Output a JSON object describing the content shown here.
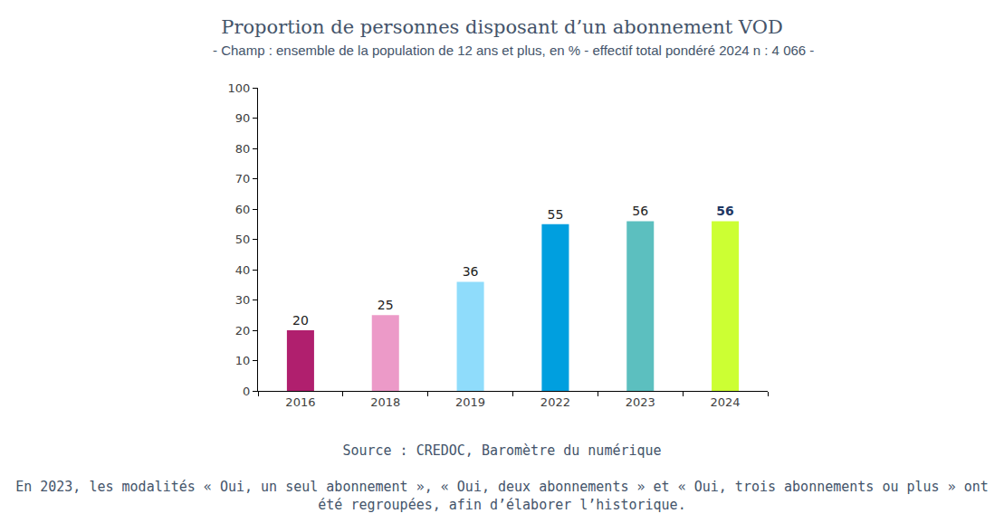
{
  "chart_data": {
    "type": "bar",
    "title": "Proportion de personnes disposant d’un abonnement VOD",
    "subtitle": "- Champ : ensemble de la population de 12 ans et plus, en % - effectif total pondéré 2024 n : 4 066 -",
    "categories": [
      "2016",
      "2018",
      "2019",
      "2022",
      "2023",
      "2024"
    ],
    "values": [
      20,
      25,
      36,
      55,
      56,
      56
    ],
    "colors": [
      "#b01f6e",
      "#ec9ac8",
      "#8fdcfb",
      "#009fdf",
      "#5cbfbf",
      "#ccff33"
    ],
    "ylim": [
      0,
      100
    ],
    "yticks": [
      0,
      10,
      20,
      30,
      40,
      50,
      60,
      70,
      80,
      90,
      100
    ],
    "grid": false,
    "data_labels": true,
    "annotations": [
      "Source : CREDOC, Baromètre du numérique",
      "En 2023, les modalités « Oui, un seul abonnement », « Oui, deux abonnements » et « Oui, trois abonnements ou plus » ont été regroupées, afin d’élaborer l’historique."
    ]
  }
}
